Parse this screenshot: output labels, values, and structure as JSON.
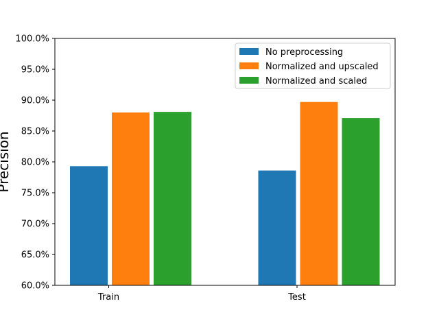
{
  "chart_data": {
    "type": "bar",
    "title": "",
    "xlabel": "",
    "ylabel": "Precision",
    "ylim": [
      60,
      100
    ],
    "yticks": [
      "60.0%",
      "65.0%",
      "70.0%",
      "75.0%",
      "80.0%",
      "85.0%",
      "90.0%",
      "95.0%",
      "100.0%"
    ],
    "categories": [
      "Train",
      "Test"
    ],
    "series": [
      {
        "name": "No preprocessing",
        "color": "#1f77b4",
        "values": [
          79.3,
          78.6
        ]
      },
      {
        "name": "Normalized and upscaled",
        "color": "#ff7f0e",
        "values": [
          88.0,
          89.7
        ]
      },
      {
        "name": "Normalized and scaled",
        "color": "#2ca02c",
        "values": [
          88.1,
          87.1
        ]
      }
    ],
    "grid": false,
    "legend_position": "top-right"
  }
}
